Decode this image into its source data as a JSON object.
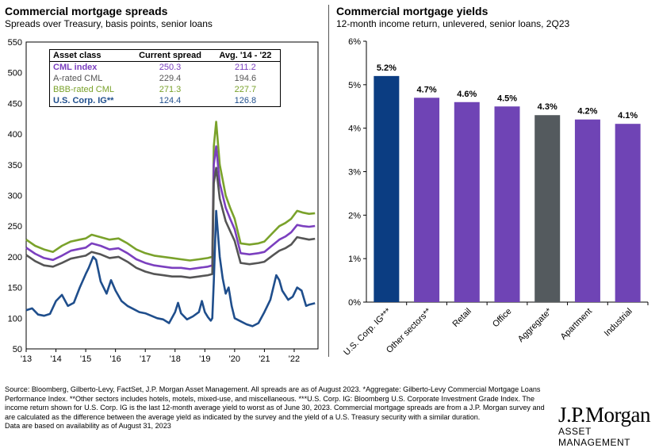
{
  "left": {
    "title": "Commercial mortgage spreads",
    "subtitle": "Spreads over Treasury, basis points, senior loans"
  },
  "right": {
    "title": "Commercial mortgage yields",
    "subtitle": "12-month income return, unlevered, senior loans, 2Q23"
  },
  "legend_table": {
    "headers": [
      "Asset class",
      "Current spread",
      "Avg. '14 - '22"
    ],
    "rows": [
      {
        "name": "CML index",
        "current": "250.3",
        "avg": "211.2",
        "color": "#7b3fbf"
      },
      {
        "name": "A-rated CML",
        "current": "229.4",
        "avg": "194.6",
        "color": "#555555"
      },
      {
        "name": "BBB-rated CML",
        "current": "271.3",
        "avg": "227.7",
        "color": "#7aa22b"
      },
      {
        "name": "U.S. Corp. IG**",
        "current": "124.4",
        "avg": "126.8",
        "color": "#1f4e8c"
      }
    ]
  },
  "chart_data": [
    {
      "type": "line",
      "title": "Commercial mortgage spreads",
      "subtitle": "Spreads over Treasury, basis points, senior loans",
      "xlabel": "",
      "ylabel": "",
      "x_ticks": [
        "'13",
        "'14",
        "'15",
        "'16",
        "'17",
        "'18",
        "'19",
        "'20",
        "'21",
        "'22"
      ],
      "ylim": [
        50,
        550
      ],
      "y_ticks": [
        50,
        100,
        150,
        200,
        250,
        300,
        350,
        400,
        450,
        500,
        550
      ],
      "grid": false,
      "series": [
        {
          "name": "BBB-rated CML",
          "color": "#7aa22b",
          "points": [
            [
              2013.0,
              228
            ],
            [
              2013.3,
              218
            ],
            [
              2013.6,
              212
            ],
            [
              2013.9,
              208
            ],
            [
              2014.2,
              218
            ],
            [
              2014.5,
              225
            ],
            [
              2014.8,
              228
            ],
            [
              2015.0,
              230
            ],
            [
              2015.2,
              236
            ],
            [
              2015.5,
              232
            ],
            [
              2015.8,
              228
            ],
            [
              2016.1,
              230
            ],
            [
              2016.4,
              222
            ],
            [
              2016.7,
              212
            ],
            [
              2017.0,
              206
            ],
            [
              2017.3,
              202
            ],
            [
              2017.6,
              200
            ],
            [
              2017.9,
              198
            ],
            [
              2018.2,
              196
            ],
            [
              2018.5,
              194
            ],
            [
              2018.8,
              196
            ],
            [
              2019.1,
              198
            ],
            [
              2019.25,
              200
            ],
            [
              2019.3,
              380
            ],
            [
              2019.38,
              420
            ],
            [
              2019.5,
              350
            ],
            [
              2019.7,
              300
            ],
            [
              2019.85,
              280
            ],
            [
              2020.0,
              262
            ],
            [
              2020.2,
              222
            ],
            [
              2020.5,
              220
            ],
            [
              2020.8,
              222
            ],
            [
              2021.0,
              225
            ],
            [
              2021.3,
              240
            ],
            [
              2021.5,
              250
            ],
            [
              2021.7,
              255
            ],
            [
              2021.9,
              262
            ],
            [
              2022.1,
              275
            ],
            [
              2022.3,
              272
            ],
            [
              2022.5,
              270
            ],
            [
              2022.7,
              271
            ]
          ]
        },
        {
          "name": "CML index",
          "color": "#7b3fbf",
          "points": [
            [
              2013.0,
              215
            ],
            [
              2013.3,
              205
            ],
            [
              2013.6,
              198
            ],
            [
              2013.9,
              195
            ],
            [
              2014.2,
              202
            ],
            [
              2014.5,
              210
            ],
            [
              2014.8,
              213
            ],
            [
              2015.0,
              215
            ],
            [
              2015.2,
              222
            ],
            [
              2015.5,
              218
            ],
            [
              2015.8,
              212
            ],
            [
              2016.1,
              214
            ],
            [
              2016.4,
              206
            ],
            [
              2016.7,
              196
            ],
            [
              2017.0,
              190
            ],
            [
              2017.3,
              186
            ],
            [
              2017.6,
              184
            ],
            [
              2017.9,
              182
            ],
            [
              2018.2,
              182
            ],
            [
              2018.5,
              180
            ],
            [
              2018.8,
              182
            ],
            [
              2019.1,
              184
            ],
            [
              2019.25,
              186
            ],
            [
              2019.3,
              350
            ],
            [
              2019.38,
              380
            ],
            [
              2019.5,
              320
            ],
            [
              2019.7,
              280
            ],
            [
              2019.85,
              262
            ],
            [
              2020.0,
              245
            ],
            [
              2020.2,
              206
            ],
            [
              2020.5,
              204
            ],
            [
              2020.8,
              206
            ],
            [
              2021.0,
              208
            ],
            [
              2021.3,
              220
            ],
            [
              2021.5,
              228
            ],
            [
              2021.7,
              233
            ],
            [
              2021.9,
              240
            ],
            [
              2022.1,
              252
            ],
            [
              2022.3,
              250
            ],
            [
              2022.5,
              249
            ],
            [
              2022.7,
              250.3
            ]
          ]
        },
        {
          "name": "A-rated CML",
          "color": "#555555",
          "points": [
            [
              2013.0,
              203
            ],
            [
              2013.3,
              193
            ],
            [
              2013.6,
              186
            ],
            [
              2013.9,
              184
            ],
            [
              2014.2,
              190
            ],
            [
              2014.5,
              197
            ],
            [
              2014.8,
              200
            ],
            [
              2015.0,
              202
            ],
            [
              2015.2,
              208
            ],
            [
              2015.5,
              204
            ],
            [
              2015.8,
              198
            ],
            [
              2016.1,
              200
            ],
            [
              2016.4,
              192
            ],
            [
              2016.7,
              182
            ],
            [
              2017.0,
              176
            ],
            [
              2017.3,
              172
            ],
            [
              2017.6,
              170
            ],
            [
              2017.9,
              168
            ],
            [
              2018.2,
              168
            ],
            [
              2018.5,
              166
            ],
            [
              2018.8,
              168
            ],
            [
              2019.1,
              170
            ],
            [
              2019.25,
              172
            ],
            [
              2019.3,
              320
            ],
            [
              2019.38,
              345
            ],
            [
              2019.5,
              295
            ],
            [
              2019.7,
              258
            ],
            [
              2019.85,
              242
            ],
            [
              2020.0,
              226
            ],
            [
              2020.2,
              190
            ],
            [
              2020.5,
              188
            ],
            [
              2020.8,
              190
            ],
            [
              2021.0,
              192
            ],
            [
              2021.3,
              203
            ],
            [
              2021.5,
              210
            ],
            [
              2021.7,
              214
            ],
            [
              2021.9,
              220
            ],
            [
              2022.1,
              232
            ],
            [
              2022.3,
              230
            ],
            [
              2022.5,
              228
            ],
            [
              2022.7,
              229.4
            ]
          ]
        },
        {
          "name": "U.S. Corp. IG**",
          "color": "#1f4e8c",
          "points": [
            [
              2013.0,
              113
            ],
            [
              2013.2,
              116
            ],
            [
              2013.4,
              106
            ],
            [
              2013.6,
              104
            ],
            [
              2013.8,
              107
            ],
            [
              2014.0,
              128
            ],
            [
              2014.2,
              138
            ],
            [
              2014.4,
              120
            ],
            [
              2014.6,
              125
            ],
            [
              2014.8,
              150
            ],
            [
              2015.0,
              172
            ],
            [
              2015.1,
              182
            ],
            [
              2015.25,
              200
            ],
            [
              2015.35,
              195
            ],
            [
              2015.5,
              160
            ],
            [
              2015.7,
              140
            ],
            [
              2015.85,
              162
            ],
            [
              2016.0,
              145
            ],
            [
              2016.2,
              128
            ],
            [
              2016.4,
              120
            ],
            [
              2016.6,
              115
            ],
            [
              2016.8,
              110
            ],
            [
              2017.0,
              108
            ],
            [
              2017.2,
              104
            ],
            [
              2017.4,
              100
            ],
            [
              2017.6,
              98
            ],
            [
              2017.8,
              92
            ],
            [
              2018.0,
              110
            ],
            [
              2018.1,
              125
            ],
            [
              2018.2,
              108
            ],
            [
              2018.4,
              98
            ],
            [
              2018.6,
              103
            ],
            [
              2018.8,
              110
            ],
            [
              2018.9,
              128
            ],
            [
              2019.0,
              110
            ],
            [
              2019.1,
              102
            ],
            [
              2019.2,
              96
            ],
            [
              2019.25,
              100
            ],
            [
              2019.3,
              160
            ],
            [
              2019.38,
              275
            ],
            [
              2019.5,
              200
            ],
            [
              2019.6,
              165
            ],
            [
              2019.7,
              140
            ],
            [
              2019.8,
              150
            ],
            [
              2019.9,
              120
            ],
            [
              2020.0,
              100
            ],
            [
              2020.2,
              95
            ],
            [
              2020.4,
              90
            ],
            [
              2020.6,
              87
            ],
            [
              2020.8,
              92
            ],
            [
              2021.0,
              110
            ],
            [
              2021.2,
              130
            ],
            [
              2021.4,
              170
            ],
            [
              2021.5,
              162
            ],
            [
              2021.6,
              145
            ],
            [
              2021.8,
              130
            ],
            [
              2021.95,
              135
            ],
            [
              2022.1,
              150
            ],
            [
              2022.25,
              145
            ],
            [
              2022.4,
              120
            ],
            [
              2022.5,
              122
            ],
            [
              2022.7,
              124.4
            ]
          ]
        }
      ]
    },
    {
      "type": "bar",
      "title": "Commercial mortgage yields",
      "subtitle": "12-month income return, unlevered, senior loans, 2Q23",
      "xlabel": "",
      "ylabel": "",
      "categories": [
        "U.S. Corp. IG***",
        "Other sectors**",
        "Retail",
        "Office",
        "Aggregate*",
        "Apartment",
        "Industrial"
      ],
      "values": [
        5.2,
        4.7,
        4.6,
        4.5,
        4.3,
        4.2,
        4.1
      ],
      "labels": [
        "5.2%",
        "4.7%",
        "4.6%",
        "4.5%",
        "4.3%",
        "4.2%",
        "4.1%"
      ],
      "colors": [
        "#0b3d82",
        "#6f44b5",
        "#6f44b5",
        "#6f44b5",
        "#545a5e",
        "#6f44b5",
        "#6f44b5"
      ],
      "ylim": [
        0,
        6
      ],
      "y_ticks": [
        "0%",
        "1%",
        "2%",
        "3%",
        "4%",
        "5%",
        "6%"
      ],
      "grid": false
    }
  ],
  "footer": {
    "source": "Source: Bloomberg, Gilberto-Levy, FactSet, J.P. Morgan Asset Management. All spreads are as of August 2023. *Aggregate: Gilberto-Levy Commercial Mortgage Loans Performance Index. **Other sectors includes hotels, motels, mixed-use, and miscellaneous. ***U.S. Corp. IG: Bloomberg U.S. Corporate Investment Grade Index. The income return shown for U.S. Corp. IG is the last 12-month average yield to worst as of June 30, 2023. Commercial mortgage spreads are from a J.P. Morgan survey and are calculated as the difference between the average yield as indicated by the survey and the yield of a U.S. Treasury security with a similar duration.",
    "availability": "Data are based on availability as of August 31, 2023",
    "logo_main": "J.P.Morgan",
    "logo_sub": "ASSET MANAGEMENT"
  }
}
